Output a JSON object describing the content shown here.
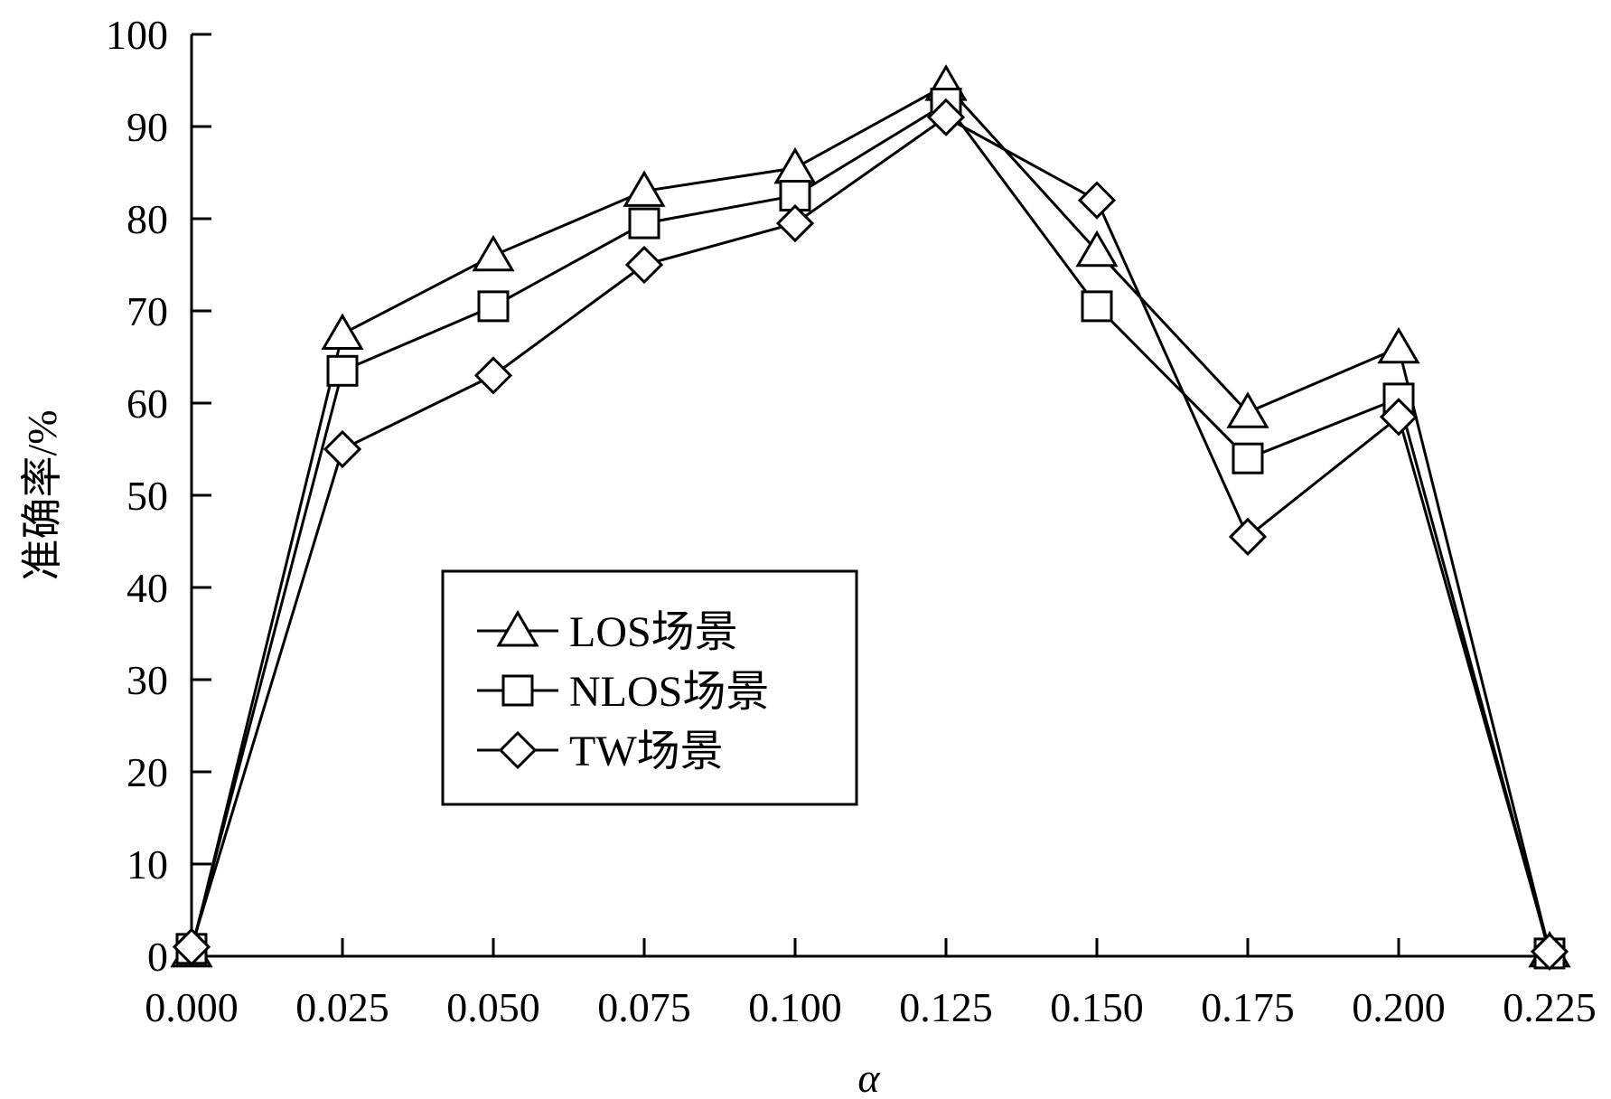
{
  "chart_data": {
    "type": "line",
    "title": "",
    "xlabel": "α",
    "ylabel": "准确率/%",
    "x": [
      0.0,
      0.025,
      0.05,
      0.075,
      0.1,
      0.125,
      0.15,
      0.175,
      0.2,
      0.225
    ],
    "x_tick_labels": [
      "0.000",
      "0.025",
      "0.050",
      "0.075",
      "0.100",
      "0.125",
      "0.150",
      "0.175",
      "0.200",
      "0.225"
    ],
    "xlim": [
      0.0,
      0.225
    ],
    "y_ticks": [
      0,
      10,
      20,
      30,
      40,
      50,
      60,
      70,
      80,
      90,
      100
    ],
    "y_tick_labels": [
      "0",
      "10",
      "20",
      "30",
      "40",
      "50",
      "60",
      "70",
      "80",
      "90",
      "100"
    ],
    "ylim": [
      0,
      100
    ],
    "grid": false,
    "legend_position": "center-left",
    "series": [
      {
        "name": "LOS场景",
        "marker": "triangle",
        "values": [
          0.5,
          67.5,
          76,
          83,
          85.5,
          94.5,
          76.5,
          59,
          66,
          0.5
        ]
      },
      {
        "name": "NLOS场景",
        "marker": "square",
        "values": [
          0.8,
          63.5,
          70.5,
          79.5,
          82.5,
          92.5,
          70.5,
          54,
          60.5,
          0.3
        ]
      },
      {
        "name": "TW场景",
        "marker": "diamond",
        "values": [
          1,
          55,
          63,
          75,
          79.5,
          91,
          82,
          45.5,
          58.5,
          0.5
        ]
      }
    ]
  }
}
